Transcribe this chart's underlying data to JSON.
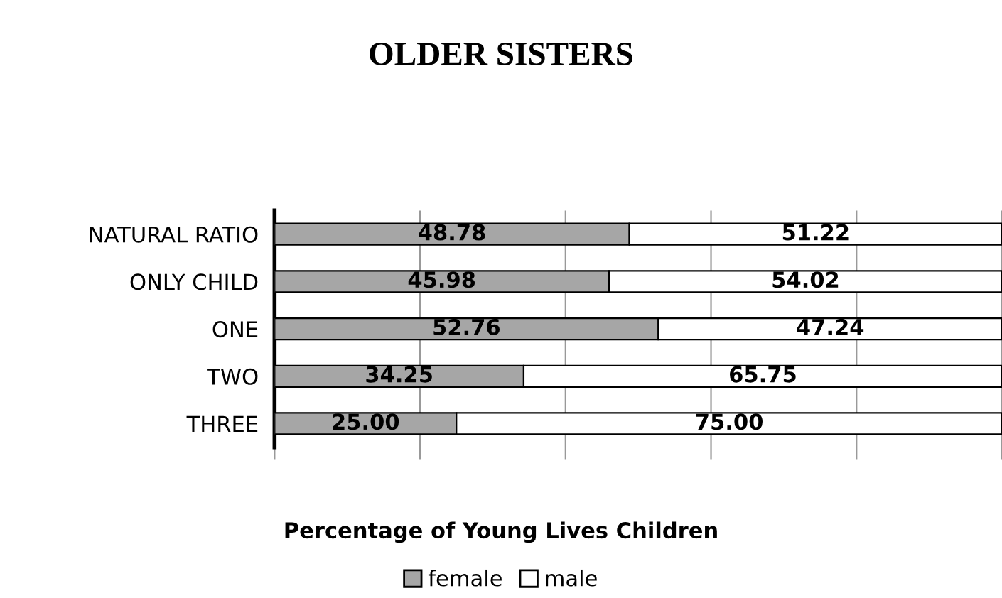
{
  "chart_data": {
    "type": "bar",
    "orientation": "horizontal",
    "stacked": true,
    "title": "OLDER SISTERS",
    "xlabel": "Percentage of Young Lives Children",
    "categories": [
      "NATURAL RATIO",
      "ONLY CHILD",
      "ONE",
      "TWO",
      "THREE"
    ],
    "series": [
      {
        "name": "female",
        "color": "#a6a6a6",
        "values": [
          48.78,
          45.98,
          52.76,
          34.25,
          25.0
        ],
        "value_labels": [
          "48.78",
          "45.98",
          "52.76",
          "34.25",
          "25.00"
        ]
      },
      {
        "name": "male",
        "color": "#ffffff",
        "values": [
          51.22,
          54.02,
          47.24,
          65.75,
          75.0
        ],
        "value_labels": [
          "51.22",
          "54.02",
          "47.24",
          "65.75",
          "75.00"
        ]
      }
    ],
    "xlim": [
      0,
      100
    ],
    "xticks": [
      {
        "value": 0,
        "label": null
      },
      {
        "value": 20,
        "label": null
      },
      {
        "value": 40,
        "label": null
      },
      {
        "value": 60,
        "label": null
      },
      {
        "value": 80,
        "label": null
      },
      {
        "value": 100,
        "label": null
      }
    ],
    "tick_labels": "y",
    "grid": "x",
    "legend": "bottom"
  }
}
